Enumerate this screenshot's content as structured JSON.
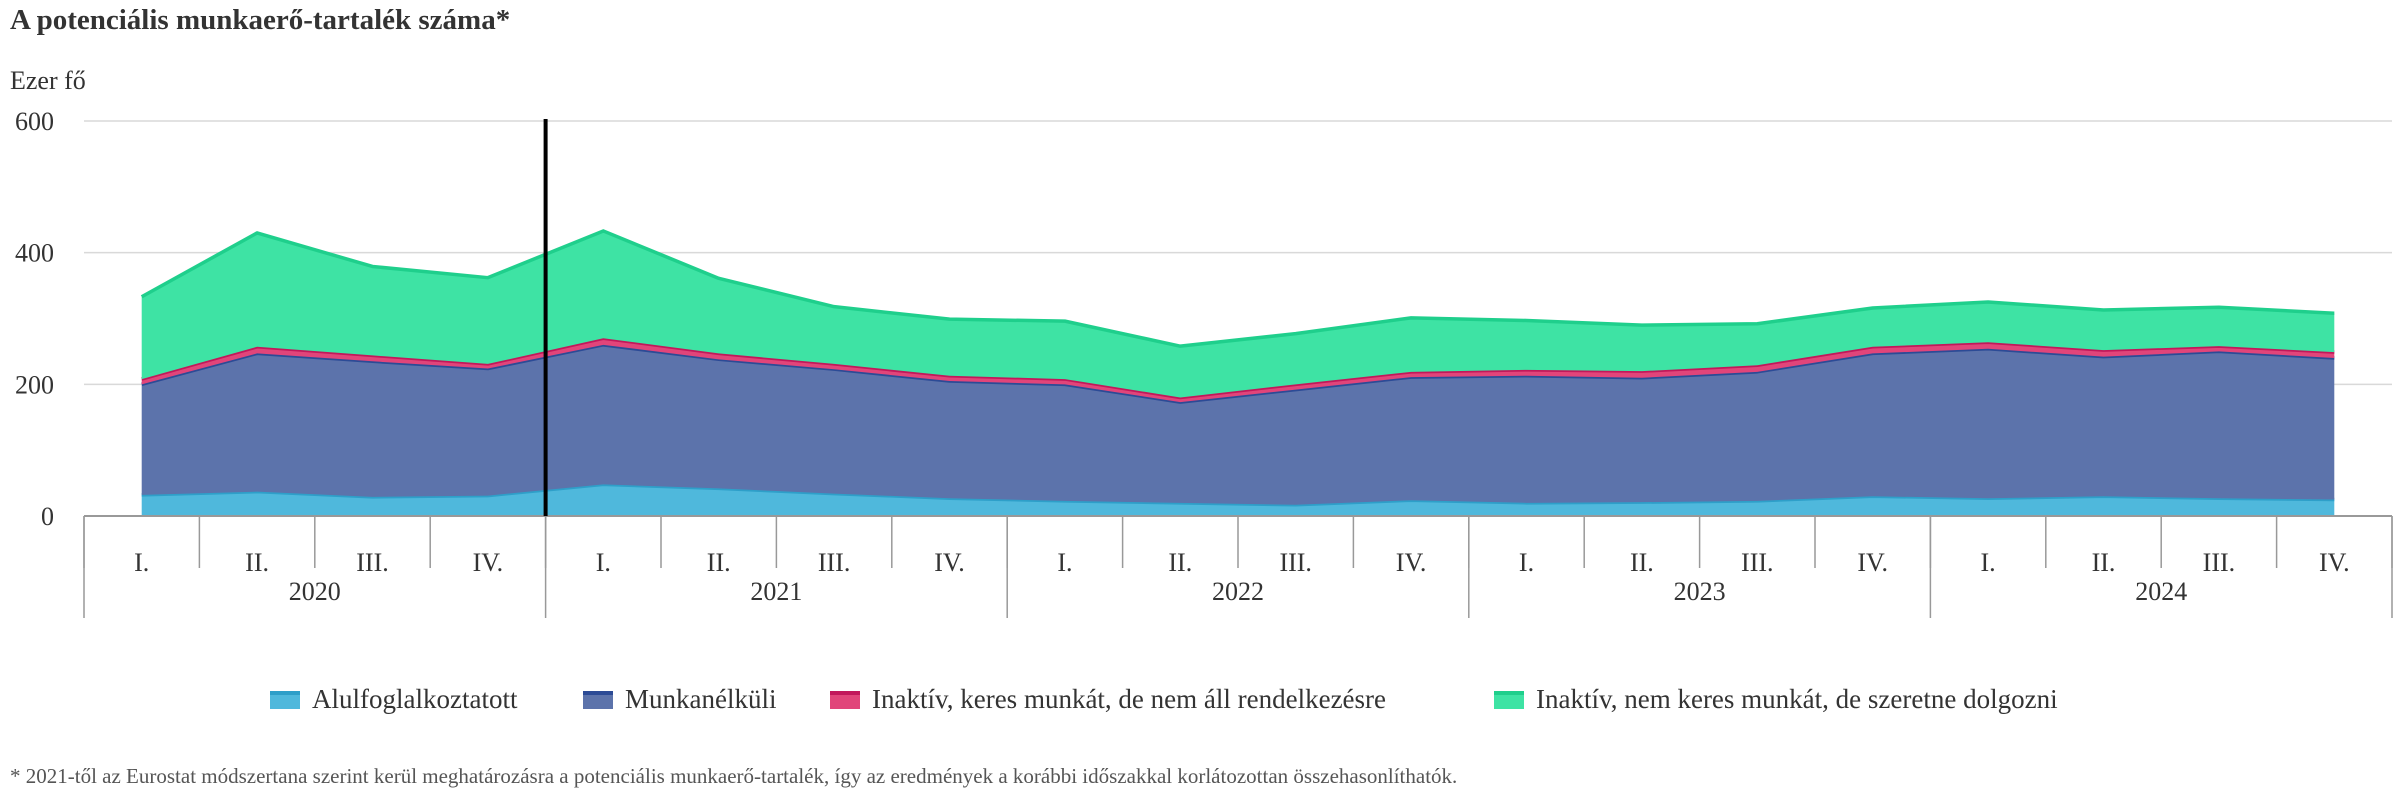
{
  "title": "A potenciális munkaerő-tartalék száma*",
  "footnote": "* 2021-től az Eurostat módszertana szerint kerül meghatározásra a potenciális munkaerő-tartalék, így az eredmények a korábbi időszakkal korlátozottan összehasonlíthatók.",
  "colors": {
    "Alulfoglalkoztatott": {
      "fill": "#4fb8dc",
      "line": "#2e9fc9"
    },
    "Munkanélküli": {
      "fill": "#5c73ab",
      "line": "#2c4b96"
    },
    "Inaktív, keres munkát, de nem áll rendelkezésre": {
      "fill": "#e1457a",
      "line": "#c2185b"
    },
    "Inaktív, nem keres munkát, de szeretne dolgozni": {
      "fill": "#3ee3a4",
      "line": "#1fcf8c"
    },
    "divider": "#000000",
    "grid": "#d9d9d9",
    "axis": "#999999"
  },
  "chart_data": {
    "type": "area",
    "stacked": true,
    "ylabel": "Ezer fő",
    "ylim": [
      0,
      600
    ],
    "yticks": [
      0,
      200,
      400,
      600
    ],
    "grid": true,
    "legend_position": "bottom",
    "categories": [
      "I.",
      "II.",
      "III.",
      "IV.",
      "I.",
      "II.",
      "III.",
      "IV.",
      "I.",
      "II.",
      "III.",
      "IV.",
      "I.",
      "II.",
      "III.",
      "IV.",
      "I.",
      "II.",
      "III.",
      "IV."
    ],
    "years": [
      {
        "label": "2020",
        "quarters": 4
      },
      {
        "label": "2021",
        "quarters": 4
      },
      {
        "label": "2022",
        "quarters": 4
      },
      {
        "label": "2023",
        "quarters": 4
      },
      {
        "label": "2024",
        "quarters": 4
      }
    ],
    "methodology_break_after_index": 3,
    "series": [
      {
        "name": "Alulfoglalkoztatott",
        "values": [
          32,
          37,
          29,
          31,
          48,
          42,
          34,
          27,
          23,
          20,
          17,
          24,
          20,
          21,
          23,
          30,
          27,
          30,
          27,
          25
        ]
      },
      {
        "name": "Munkanélküli",
        "values": [
          168,
          210,
          206,
          193,
          212,
          196,
          189,
          178,
          177,
          153,
          175,
          187,
          193,
          189,
          196,
          217,
          227,
          212,
          223,
          215
        ]
      },
      {
        "name": "Inaktív, keres munkát, de nem áll rendelkezésre",
        "values": [
          8,
          10,
          9,
          7,
          10,
          9,
          8,
          8,
          8,
          7,
          8,
          8,
          9,
          10,
          10,
          10,
          10,
          10,
          8,
          9
        ]
      },
      {
        "name": "Inaktív, nem keres munkát, de szeretne dolgozni",
        "values": [
          125,
          173,
          135,
          131,
          163,
          114,
          87,
          86,
          88,
          78,
          77,
          82,
          75,
          70,
          63,
          59,
          61,
          61,
          59,
          59
        ]
      }
    ]
  }
}
